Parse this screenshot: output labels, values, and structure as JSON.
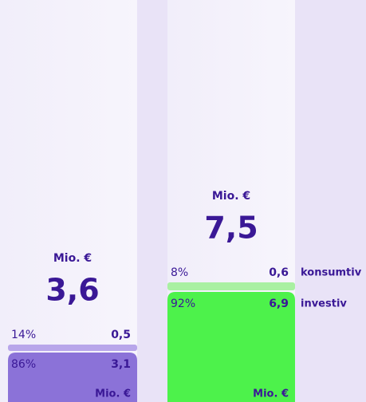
{
  "chart_data": {
    "type": "stacked_bar",
    "unit": "Mio. €",
    "totals": [
      3.6,
      7.5
    ],
    "total_labels": [
      "3,6",
      "7,5"
    ],
    "series": [
      {
        "name": "konsumtiv",
        "color": [
          "#b8a6ea",
          "#a9f0a2"
        ],
        "values": [
          0.5,
          0.6
        ],
        "value_labels": [
          "0,5",
          "0,6"
        ],
        "percents": [
          14,
          8
        ],
        "percent_labels": [
          "14%",
          "8%"
        ]
      },
      {
        "name": "investiv",
        "color": [
          "#8b72d8",
          "#4df24b"
        ],
        "values": [
          3.1,
          6.9
        ],
        "value_labels": [
          "3,1",
          "6,9"
        ],
        "percents": [
          86,
          92
        ],
        "percent_labels": [
          "86%",
          "92%"
        ]
      }
    ]
  }
}
